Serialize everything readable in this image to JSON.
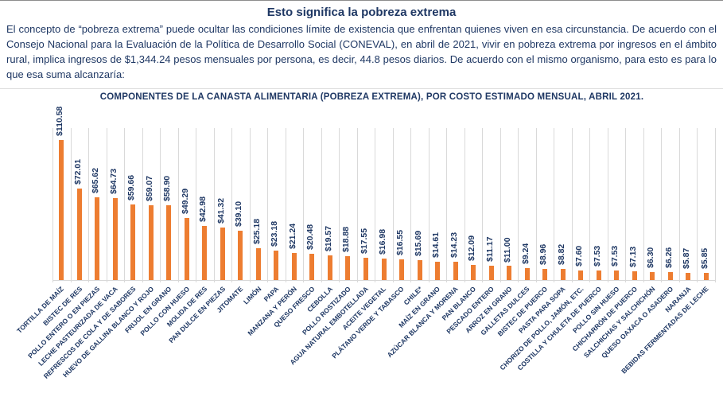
{
  "page": {
    "title": "Esto significa la pobreza extrema",
    "intro": "El concepto de “pobreza extrema” puede ocultar las condiciones límite de existencia que enfrentan quienes viven en esa circunstancia. De acuerdo con el Consejo Nacional para la Evaluación de la Política de Desarrollo Social (CONEVAL), en abril de 2021, vivir en pobreza extrema por ingresos en el ámbito rural, implica ingresos de $1,344.24 pesos mensuales por persona, es decir, 44.8 pesos diarios. De acuerdo con el mismo organismo, para esto es para lo que esa suma alcanzaría:"
  },
  "chart_data": {
    "type": "bar",
    "title": "COMPONENTES DE LA CANASTA ALIMENTARIA (POBREZA EXTREMA), POR COSTO ESTIMADO MENSUAL, ABRIL 2021.",
    "categories": [
      "TORTILLA DE MAÍZ",
      "BISTEC DE RES",
      "POLLO ENTERO O EN PIEZAS",
      "LECHE PASTEURIZADA DE VACA",
      "REFRESCOS DE COLA Y DE SABORES",
      "HUEVO DE GALLINA BLANCO Y ROJO",
      "FRIJOL EN GRANO",
      "POLLO CON HUESO",
      "MOLIDA DE RES",
      "PAN DULCE EN PIEZAS",
      "JITOMATE",
      "LIMÓN",
      "PAPA",
      "MANZANA Y PERÓN",
      "QUESO FRESCO",
      "CEBOLLA",
      "POLLO ROSTIZADO",
      "AGUA NATURAL EMBOTELLADA",
      "ACEITE VEGETAL",
      "PLÁTANO VERDE Y TABASCO",
      "CHILE*",
      "MAÍZ EN GRANO",
      "AZÚCAR BLANCA Y MORENA",
      "PAN BLANCO",
      "PESCADO ENTERO",
      "ARROZ EN GRANO",
      "GALLETAS DULCES",
      "BISTEC DE PUERCO",
      "PASTA PARA SOPA",
      "CHORIZO DE POLLO, JAMÓN, ETC.",
      "COSTILLA Y CHULETA DE PUERCO",
      "POLLO SIN HUESO",
      "CHICHARRÓN DE PUERCO",
      "SALCHICHAS Y SALCHICHÓN",
      "QUESO OAXACA O ASADERO",
      "NARANJA",
      "BEBIDAS FERMENTADAS DE LECHE"
    ],
    "values": [
      110.58,
      72.01,
      65.62,
      64.73,
      59.66,
      59.07,
      58.9,
      49.29,
      42.98,
      41.32,
      39.1,
      25.18,
      23.18,
      21.24,
      20.48,
      19.57,
      18.88,
      17.55,
      16.98,
      16.55,
      15.69,
      14.61,
      14.23,
      12.09,
      11.17,
      11.0,
      9.24,
      8.96,
      8.82,
      7.6,
      7.53,
      7.53,
      7.13,
      6.3,
      6.26,
      5.87,
      5.85
    ],
    "value_prefix": "$",
    "xlabel": "",
    "ylabel": "",
    "ylim": [
      0,
      120
    ],
    "legend": "none",
    "grid": "vertical-category-gridlines",
    "value_labels": "rotated-90-above-bars",
    "category_labels_angle": 45,
    "bar_color": "#ED7D31",
    "text_color": "#1F3864",
    "gridline_color": "#D9D9D9"
  }
}
